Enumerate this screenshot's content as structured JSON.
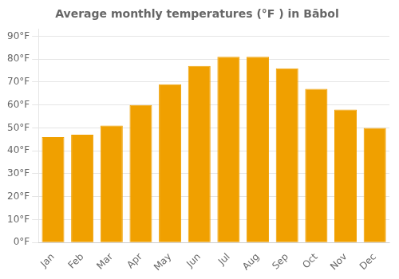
{
  "chart_data": {
    "type": "bar",
    "title": "Average monthly temperatures (°F ) in Bābol",
    "categories": [
      "Jan",
      "Feb",
      "Mar",
      "Apr",
      "May",
      "Jun",
      "Jul",
      "Aug",
      "Sep",
      "Oct",
      "Nov",
      "Dec"
    ],
    "values": [
      46,
      47,
      51,
      60,
      69,
      77,
      81,
      81,
      76,
      67,
      58,
      50
    ],
    "color": "#F0A000",
    "ylim": [
      0,
      93
    ],
    "yticks": [
      {
        "value": 0,
        "label": "0°F"
      },
      {
        "value": 10,
        "label": "10°F"
      },
      {
        "value": 20,
        "label": "20°F"
      },
      {
        "value": 30,
        "label": "30°F"
      },
      {
        "value": 40,
        "label": "40°F"
      },
      {
        "value": 50,
        "label": "50°F"
      },
      {
        "value": 60,
        "label": "60°F"
      },
      {
        "value": 70,
        "label": "70°F"
      },
      {
        "value": 80,
        "label": "80°F"
      },
      {
        "value": 90,
        "label": "90°F"
      }
    ],
    "grid": true
  }
}
